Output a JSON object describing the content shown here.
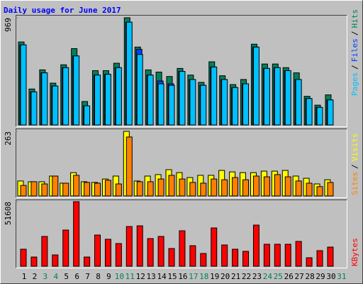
{
  "chart_data": [
    {
      "type": "bar",
      "title": "Daily usage for June 2017",
      "ylim": [
        0,
        969
      ],
      "yticks": [
        969
      ],
      "legend_separator": "/",
      "series": [
        {
          "name": "Hits",
          "color": "#00805c",
          "values": [
            750,
            325,
            498,
            378,
            544,
            690,
            212,
            491,
            491,
            558,
            969,
            704,
            498,
            478,
            438,
            511,
            451,
            385,
            571,
            445,
            365,
            411,
            730,
            551,
            551,
            518,
            471,
            259,
            179,
            272,
            null
          ]
        },
        {
          "name": "Files",
          "color": "#0040ff",
          "values": [
            724,
            299,
            471,
            352,
            518,
            624,
            173,
            451,
            458,
            518,
            929,
            684,
            451,
            398,
            372,
            484,
            411,
            358,
            524,
            411,
            338,
            372,
            704,
            511,
            518,
            491,
            411,
            239,
            159,
            226,
            null
          ]
        },
        {
          "name": "Pages",
          "color": "#00c0ff",
          "values": [
            724,
            299,
            471,
            352,
            518,
            624,
            173,
            451,
            458,
            518,
            929,
            637,
            451,
            372,
            358,
            484,
            411,
            358,
            524,
            411,
            338,
            372,
            704,
            511,
            518,
            491,
            411,
            239,
            159,
            226,
            null
          ]
        }
      ]
    },
    {
      "type": "bar",
      "ylim": [
        0,
        263
      ],
      "yticks": [
        263
      ],
      "legend_separator": "/",
      "series": [
        {
          "name": "Visits",
          "color": "#ffff00",
          "values": [
            61,
            58,
            58,
            81,
            52,
            95,
            58,
            55,
            69,
            81,
            263,
            61,
            81,
            87,
            107,
            95,
            75,
            84,
            84,
            104,
            98,
            95,
            95,
            101,
            101,
            104,
            81,
            72,
            49,
            66,
            null
          ]
        },
        {
          "name": "Sites",
          "color": "#ff8000",
          "values": [
            43,
            58,
            49,
            81,
            52,
            84,
            55,
            52,
            64,
            49,
            240,
            58,
            58,
            69,
            84,
            69,
            55,
            52,
            69,
            66,
            75,
            66,
            81,
            78,
            87,
            78,
            61,
            52,
            38,
            55,
            null
          ]
        }
      ]
    },
    {
      "type": "bar",
      "ylim": [
        0,
        51608
      ],
      "yticks": [
        51608
      ],
      "categories": [
        "1",
        "2",
        "3",
        "4",
        "5",
        "6",
        "7",
        "8",
        "9",
        "10",
        "11",
        "12",
        "13",
        "14",
        "15",
        "16",
        "17",
        "18",
        "19",
        "20",
        "21",
        "22",
        "23",
        "24",
        "25",
        "26",
        "27",
        "28",
        "29",
        "30",
        "31"
      ],
      "label_colors": [
        "#000000",
        "#000000",
        "#00805c",
        "#00805c",
        "#000000",
        "#000000",
        "#000000",
        "#000000",
        "#000000",
        "#00805c",
        "#00805c",
        "#000000",
        "#000000",
        "#000000",
        "#000000",
        "#000000",
        "#00805c",
        "#00805c",
        "#000000",
        "#000000",
        "#000000",
        "#000000",
        "#000000",
        "#00805c",
        "#00805c",
        "#000000",
        "#000000",
        "#000000",
        "#000000",
        "#000000",
        "#00805c"
      ],
      "series": [
        {
          "name": "KBytes",
          "color": "#ff0000",
          "values": [
            13608,
            7371,
            23814,
            9072,
            28917,
            51608,
            7371,
            24948,
            21546,
            18144,
            31752,
            32319,
            22113,
            23814,
            14175,
            28350,
            16443,
            10206,
            30618,
            17010,
            13608,
            11907,
            32886,
            17577,
            17577,
            17577,
            19845,
            6804,
            12474,
            15309,
            null
          ]
        }
      ]
    }
  ]
}
